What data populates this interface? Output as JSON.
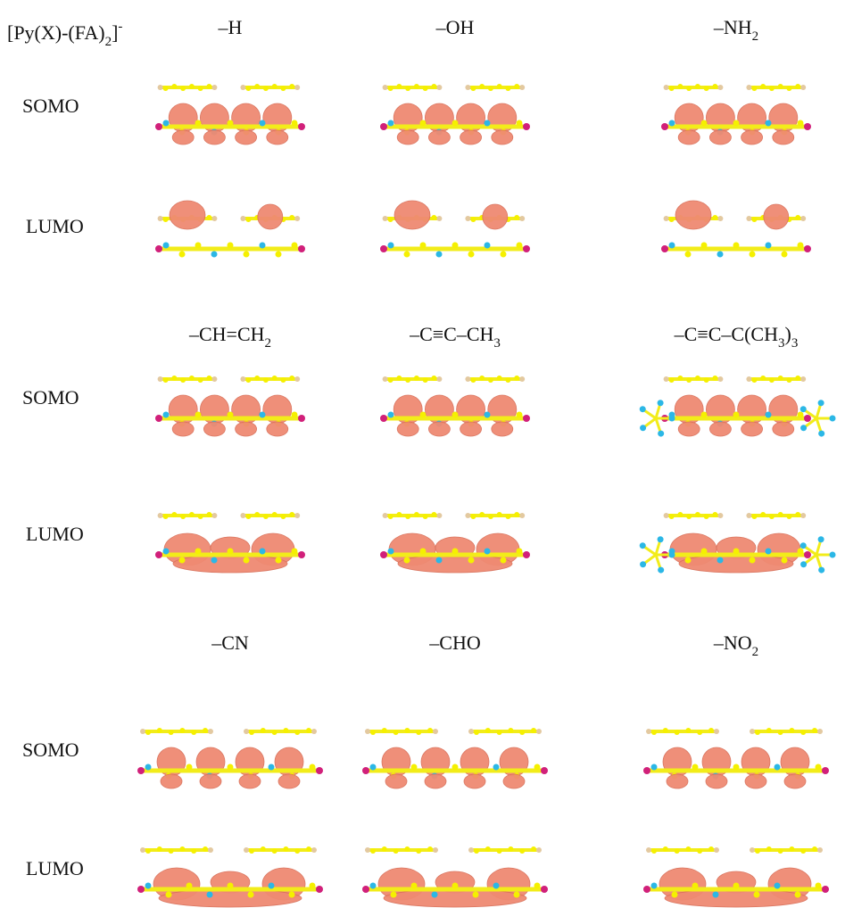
{
  "header": {
    "parts": [
      {
        "text": "[Py(X)-(FA)"
      },
      {
        "sub": "2"
      },
      {
        "text": "]"
      },
      {
        "sup": "-"
      }
    ]
  },
  "blocks": [
    {
      "substituents": [
        {
          "parts": [
            {
              "text": "–H"
            }
          ]
        },
        {
          "parts": [
            {
              "text": "–OH"
            }
          ]
        },
        {
          "parts": [
            {
              "text": "–NH"
            },
            {
              "sub": "2"
            }
          ]
        }
      ],
      "rows": [
        "SOMO",
        "LUMO"
      ]
    },
    {
      "substituents": [
        {
          "parts": [
            {
              "text": "–CH=CH"
            },
            {
              "sub": "2"
            }
          ]
        },
        {
          "parts": [
            {
              "text": "–C≡C–CH"
            },
            {
              "sub": "3"
            }
          ]
        },
        {
          "parts": [
            {
              "text": "–C≡C–C(CH"
            },
            {
              "sub": "3"
            },
            {
              "text": ")"
            },
            {
              "sub": "3"
            }
          ]
        }
      ],
      "rows": [
        "SOMO",
        "LUMO"
      ]
    },
    {
      "substituents": [
        {
          "parts": [
            {
              "text": "–CN"
            }
          ]
        },
        {
          "parts": [
            {
              "text": "–CHO"
            }
          ]
        },
        {
          "parts": [
            {
              "text": "–NO"
            },
            {
              "sub": "2"
            }
          ]
        }
      ],
      "rows": [
        "SOMO",
        "LUMO"
      ]
    }
  ]
}
